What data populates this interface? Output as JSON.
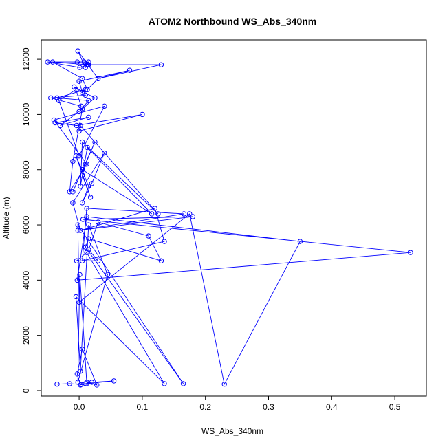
{
  "chart_data": {
    "type": "line",
    "title": "ATOM2 Northbound WS_Abs_340nm",
    "xlabel": "WS_Abs_340nm",
    "ylabel": "Altitude (m)",
    "xlim": [
      -0.06,
      0.55
    ],
    "ylim": [
      -200,
      12700
    ],
    "xticks": [
      0.0,
      0.1,
      0.2,
      0.3,
      0.4,
      0.5
    ],
    "xtick_labels": [
      "0.0",
      "0.1",
      "0.2",
      "0.3",
      "0.4",
      "0.5"
    ],
    "yticks": [
      0,
      2000,
      4000,
      6000,
      8000,
      10000,
      12000
    ],
    "ytick_labels": [
      "0",
      "2000",
      "4000",
      "6000",
      "8000",
      "10000",
      "12000"
    ],
    "grid": false,
    "series": [
      {
        "color": "#0000ff",
        "marker": "open-circle",
        "x": [
          -0.035,
          -0.015,
          0.003,
          0.01,
          0.02,
          0.055,
          0.012,
          0.002,
          -0.003,
          0.005,
          0.028,
          0.012,
          0.001,
          -0.002,
          0.045,
          0.015,
          0.002,
          -0.005,
          0.135,
          0.012,
          -0.004,
          0.03,
          0.015,
          0.03,
          0.11,
          0.13,
          0.015,
          0.01,
          0.165,
          -0.002,
          0.0,
          0.175,
          0.23,
          0.35,
          0.012,
          -0.003,
          0.525,
          0.006,
          0.18,
          -0.002,
          0.166,
          0.012,
          0.005,
          0.135,
          0.12,
          0.002,
          -0.01,
          0.04,
          0.02,
          0.005,
          0.015,
          -0.005,
          0.018,
          0.005,
          0.01,
          0.025,
          -0.01,
          0.005,
          0.115,
          0.013,
          0.002,
          0.005,
          0.125,
          0.002,
          0.0,
          0.1,
          -0.004,
          -0.038,
          0.015,
          -0.03,
          0.005,
          -0.01,
          -0.015,
          0.012,
          -0.04,
          0.04,
          0.0,
          -0.032,
          -0.005,
          0.003,
          -0.045,
          0.01,
          -0.008,
          0.025,
          0.0,
          0.015,
          -0.035,
          0.01,
          0.005,
          0.0,
          0.08,
          0.03,
          0.013,
          0.005,
          -0.042,
          0.012,
          0.13,
          0.03,
          -0.002,
          0.01,
          0.015,
          -0.05,
          0.001,
          0.015,
          0.008,
          0.014,
          -0.003
        ],
        "y": [
          230,
          250,
          220,
          250,
          300,
          350,
          250,
          200,
          600,
          1500,
          200,
          300,
          4200,
          300,
          4200,
          6000,
          700,
          3400,
          250,
          5000,
          4700,
          4700,
          5100,
          6100,
          5600,
          4700,
          5500,
          5200,
          250,
          6000,
          3200,
          6400,
          230,
          5400,
          6300,
          4000,
          5000,
          6200,
          6300,
          5800,
          6400,
          6600,
          4700,
          5400,
          6600,
          5800,
          6800,
          8600,
          7500,
          6800,
          7400,
          8500,
          7000,
          7800,
          8200,
          9000,
          7200,
          8000,
          6400,
          8800,
          7400,
          9000,
          6400,
          9600,
          9400,
          10000,
          9600,
          9700,
          9900,
          9600,
          10200,
          8300,
          7200,
          8200,
          9800,
          10300,
          8500,
          10500,
          10900,
          10300,
          10600,
          10700,
          11000,
          10600,
          10100,
          10500,
          10600,
          10900,
          10800,
          11200,
          11600,
          11300,
          10900,
          11300,
          11900,
          11800,
          11800,
          11300,
          12300,
          11700,
          11900,
          11900,
          11700,
          11800,
          11900,
          11800,
          11900
        ]
      }
    ]
  }
}
